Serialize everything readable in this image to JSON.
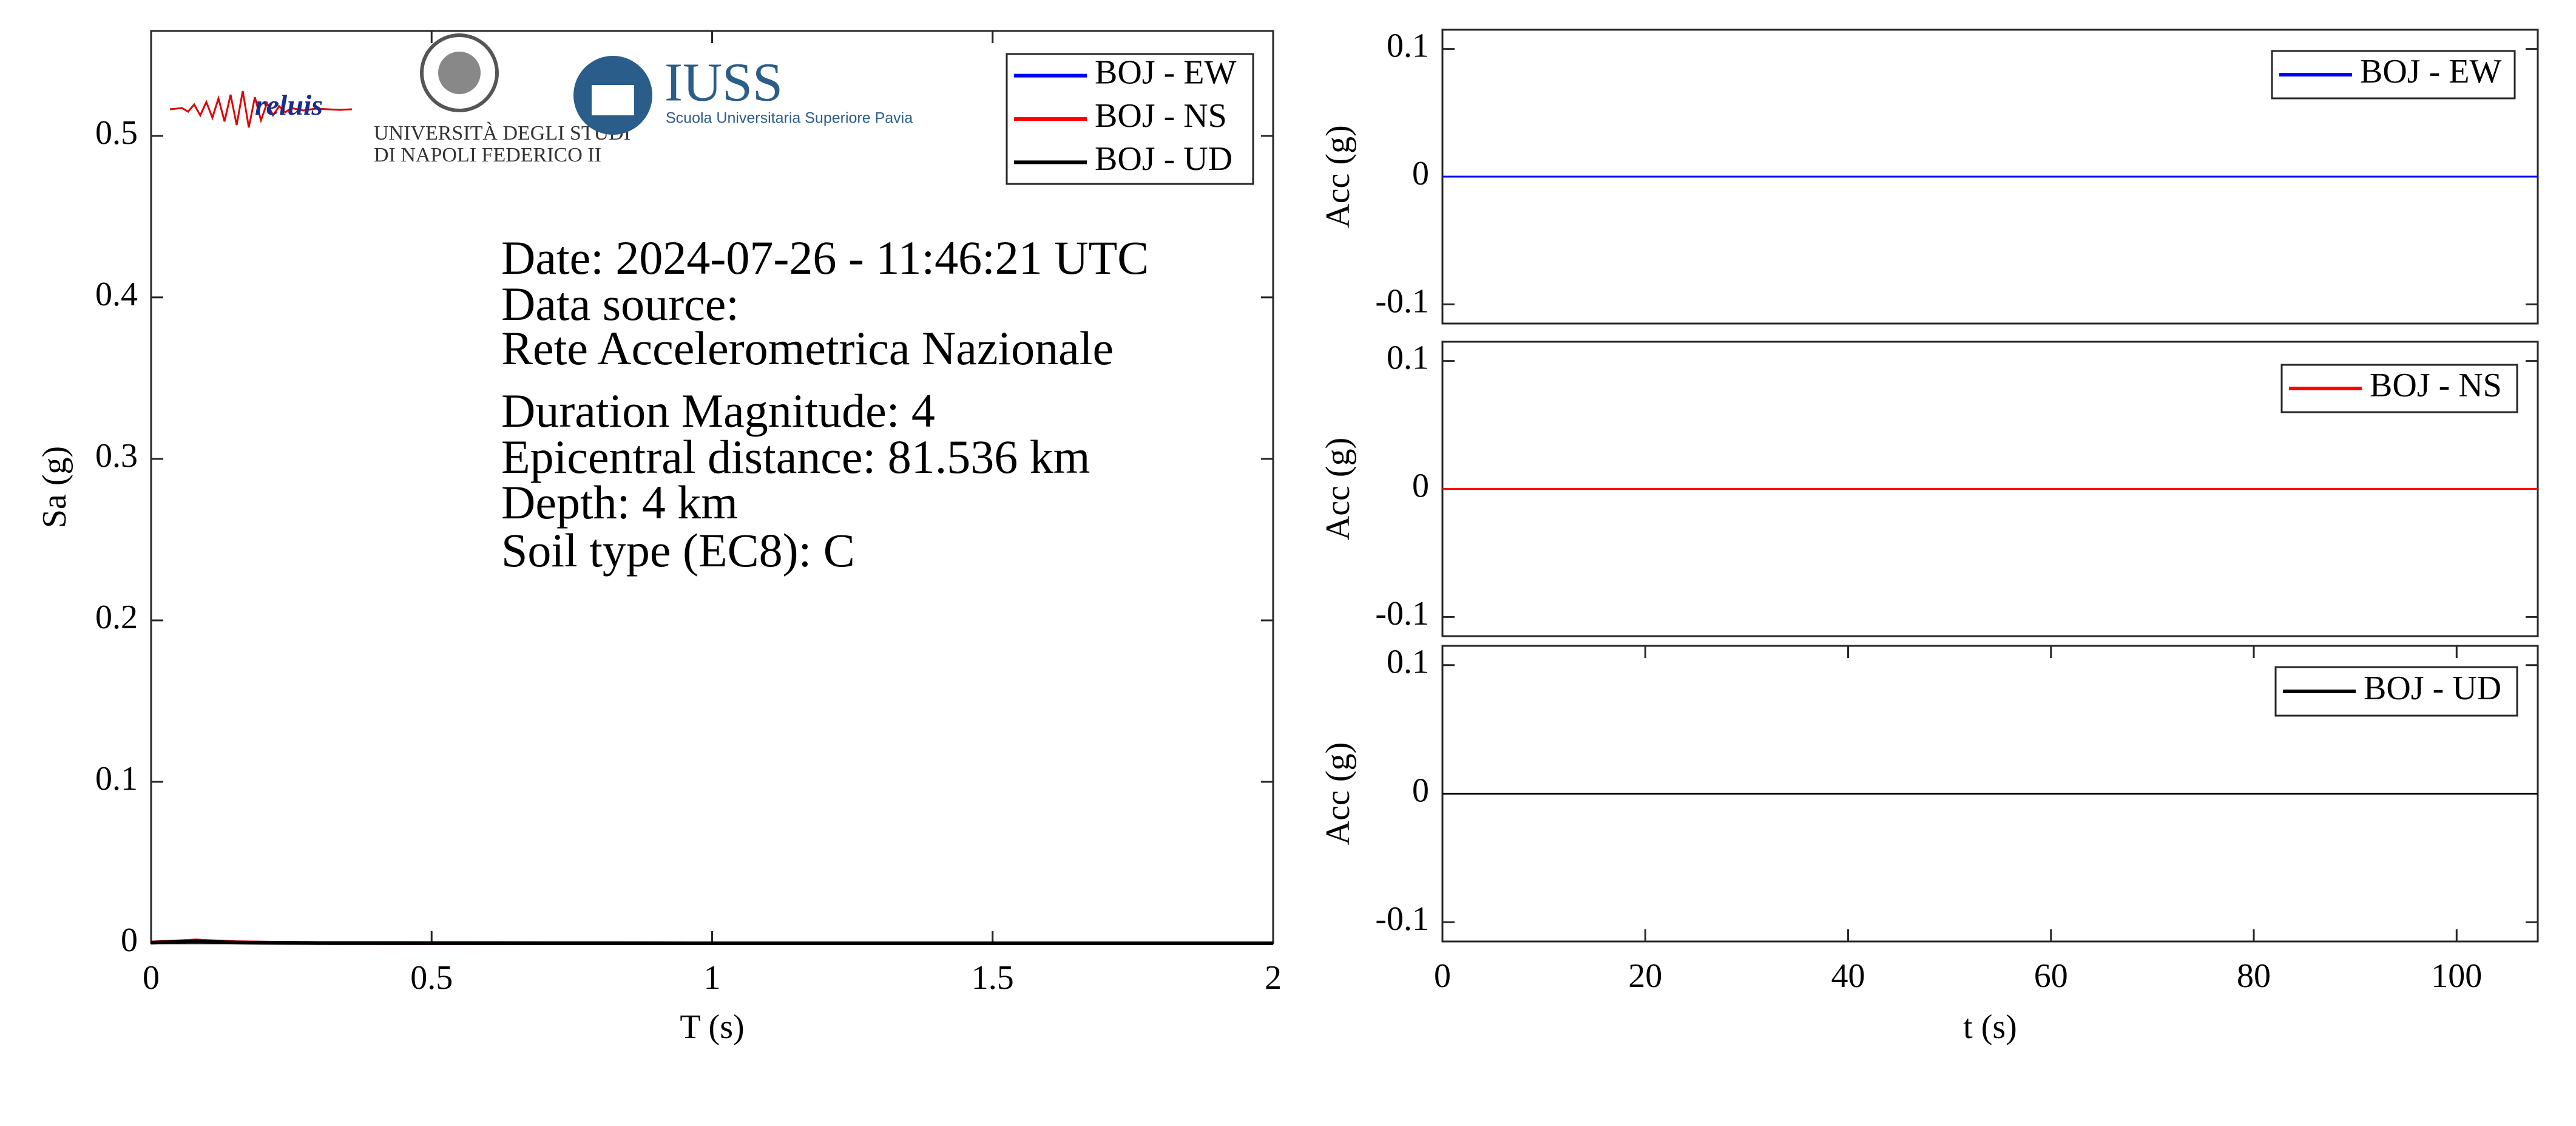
{
  "chart_data": [
    {
      "type": "line",
      "ylabel": "Sa (g)",
      "xlabel": "T (s)",
      "xlim": [
        0,
        2
      ],
      "xticks": [
        0,
        0.5,
        1,
        1.5,
        2
      ],
      "ylim": [
        0,
        0.565
      ],
      "yticks": [
        0,
        0.1,
        0.2,
        0.3,
        0.4,
        0.5
      ],
      "x": [
        0,
        0.05,
        0.08,
        0.1,
        0.15,
        0.2,
        0.3,
        0.5,
        1,
        1.5,
        2
      ],
      "series": [
        {
          "name": "BOJ - EW",
          "color": "#0000ff",
          "values": [
            0.0005,
            0.001,
            0.0015,
            0.0012,
            0.0006,
            0.0004,
            0.0002,
            0.0001,
            0,
            0,
            0
          ]
        },
        {
          "name": "BOJ - NS",
          "color": "#ff0000",
          "values": [
            0.0005,
            0.0012,
            0.0018,
            0.0014,
            0.0007,
            0.0004,
            0.0002,
            0.0001,
            0,
            0,
            0
          ]
        },
        {
          "name": "BOJ - UD",
          "color": "#000000",
          "values": [
            0.0004,
            0.0009,
            0.0013,
            0.001,
            0.0005,
            0.0003,
            0.0001,
            0.0001,
            0,
            0,
            0
          ]
        }
      ],
      "annotations": [
        "Date: 2024-07-26 - 11:46:21 UTC",
        "Data source:",
        "Rete Accelerometrica Nazionale",
        "Duration Magnitude: 4",
        "Epicentral distance: 81.536 km",
        "Depth: 4 km",
        "Soil type (EC8): C"
      ],
      "logos": [
        "reluis",
        "UNIVERSITÀ DEGLI STUDI",
        "DI NAPOLI FEDERICO II",
        "IUSS",
        "Scuola Universitaria Superiore Pavia"
      ]
    },
    {
      "type": "line",
      "ylabel": "Acc (g)",
      "xlim": [
        0,
        108
      ],
      "ylim": [
        -0.115,
        0.115
      ],
      "yticks": [
        -0.1,
        0,
        0.1
      ],
      "x": [
        0,
        108
      ],
      "series": [
        {
          "name": "BOJ - EW",
          "color": "#0000ff",
          "values": [
            0,
            0
          ]
        }
      ]
    },
    {
      "type": "line",
      "ylabel": "Acc (g)",
      "xlim": [
        0,
        108
      ],
      "ylim": [
        -0.115,
        0.115
      ],
      "yticks": [
        -0.1,
        0,
        0.1
      ],
      "x": [
        0,
        108
      ],
      "series": [
        {
          "name": "BOJ - NS",
          "color": "#ff0000",
          "values": [
            0,
            0
          ]
        }
      ]
    },
    {
      "type": "line",
      "ylabel": "Acc (g)",
      "xlabel": "t (s)",
      "xlim": [
        0,
        108
      ],
      "xticks": [
        0,
        20,
        40,
        60,
        80,
        100
      ],
      "ylim": [
        -0.115,
        0.115
      ],
      "yticks": [
        -0.1,
        0,
        0.1
      ],
      "x": [
        0,
        108
      ],
      "series": [
        {
          "name": "BOJ - UD",
          "color": "#000000",
          "values": [
            0,
            0
          ]
        }
      ]
    }
  ]
}
